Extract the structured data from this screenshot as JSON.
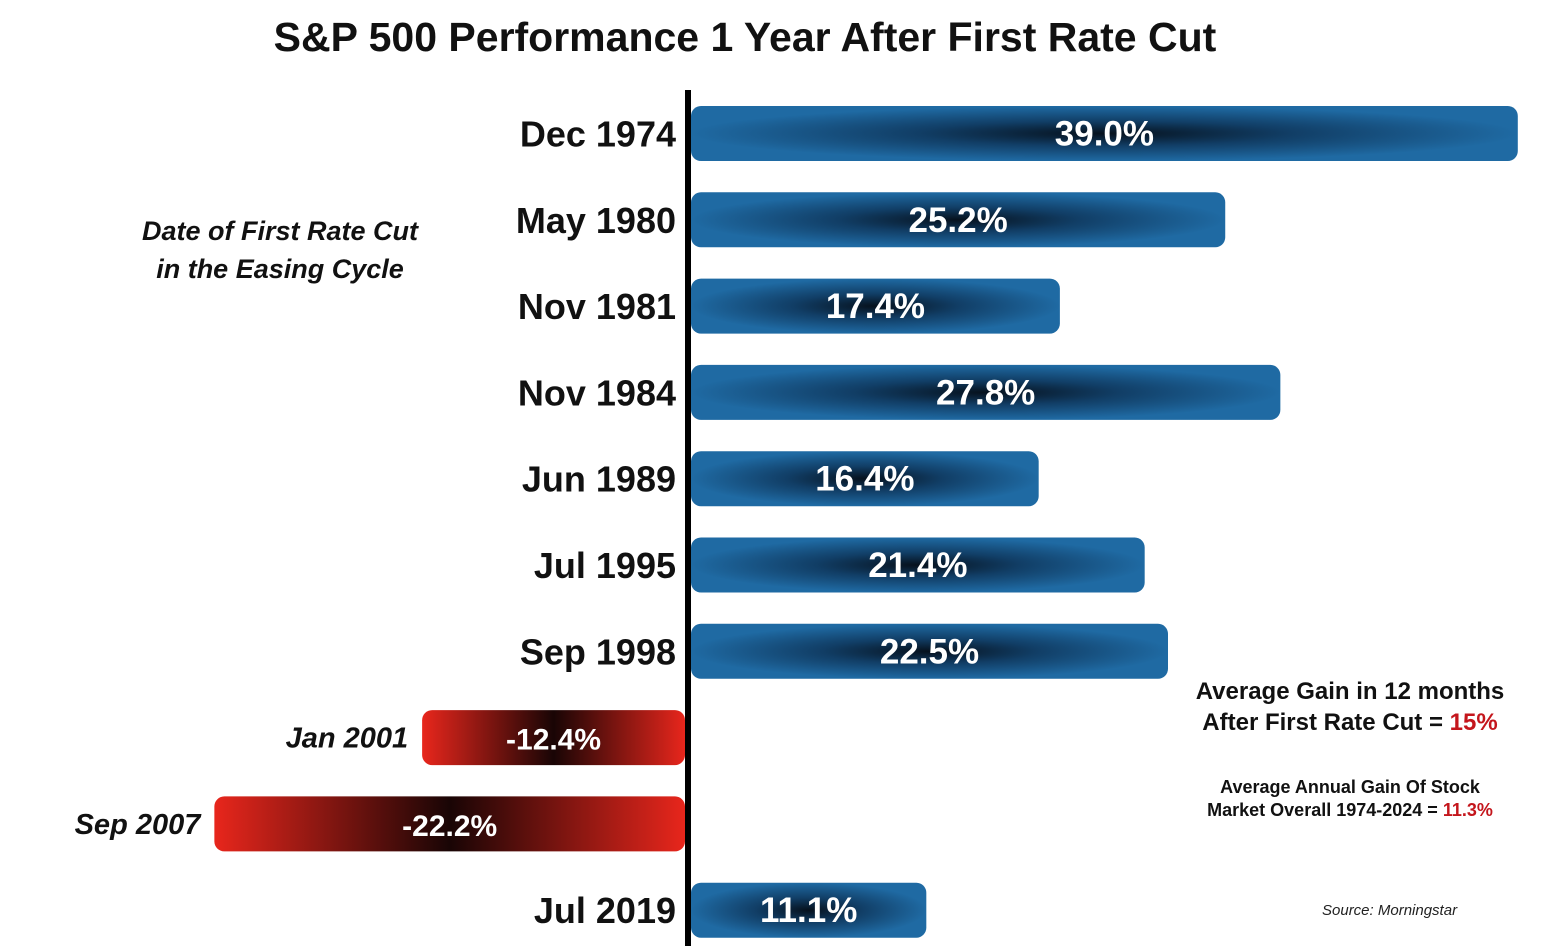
{
  "chart_data": {
    "type": "bar",
    "orientation": "horizontal",
    "title": "S&P 500 Performance 1 Year After First Rate Cut",
    "categories": [
      "Dec 1974",
      "May 1980",
      "Nov 1981",
      "Nov 1984",
      "Jun 1989",
      "Jul 1995",
      "Sep 1998",
      "Jan 2001",
      "Sep 2007",
      "Jul 2019"
    ],
    "values": [
      39.0,
      25.2,
      17.4,
      27.8,
      16.4,
      21.4,
      22.5,
      -12.4,
      -22.2,
      11.1
    ],
    "data_labels": [
      "39.0%",
      "25.2%",
      "17.4%",
      "27.8%",
      "16.4%",
      "21.4%",
      "22.5%",
      "-12.4%",
      "-22.2%",
      "11.1%"
    ],
    "unit": "%",
    "colors": {
      "positive": "#1b5e93",
      "negative": "#c8211b"
    }
  },
  "annotations": {
    "category_note_line1": "Date of First Rate Cut",
    "category_note_line2": "in the Easing Cycle",
    "avg_gain_line1": "Average Gain in 12 months",
    "avg_gain_line2_prefix": "After First Rate Cut = ",
    "avg_gain_value": "15%",
    "avg_annual_line1": "Average Annual Gain Of Stock",
    "avg_annual_line2_prefix": "Market Overall 1974-2024 = ",
    "avg_annual_value": "11.3%",
    "source": "Source: Morningstar"
  }
}
